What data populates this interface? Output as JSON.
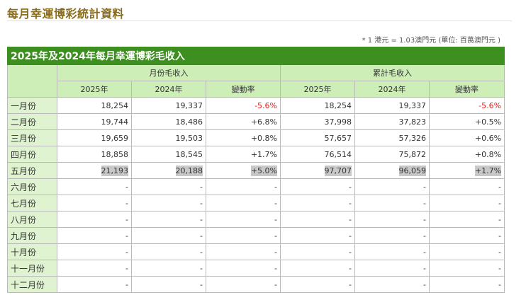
{
  "page_title": "每月幸運博彩統計資料",
  "note": "* 1 港元 = 1.03澳門元  (單位: 百萬澳門元 )",
  "table": {
    "banner": "2025年及2024年每月幸運博彩毛收入",
    "group_monthly": "月份毛收入",
    "group_cumulative": "累計毛收入",
    "col_2025": "2025年",
    "col_2024": "2024年",
    "col_change": "變動率",
    "rows": [
      {
        "month": "一月份",
        "m2025": "18,254",
        "m2024": "19,337",
        "mchg": "-5.6%",
        "c2025": "18,254",
        "c2024": "19,337",
        "cchg": "-5.6%"
      },
      {
        "month": "二月份",
        "m2025": "19,744",
        "m2024": "18,486",
        "mchg": "+6.8%",
        "c2025": "37,998",
        "c2024": "37,823",
        "cchg": "+0.5%"
      },
      {
        "month": "三月份",
        "m2025": "19,659",
        "m2024": "19,503",
        "mchg": "+0.8%",
        "c2025": "57,657",
        "c2024": "57,326",
        "cchg": "+0.6%"
      },
      {
        "month": "四月份",
        "m2025": "18,858",
        "m2024": "18,545",
        "mchg": "+1.7%",
        "c2025": "76,514",
        "c2024": "75,872",
        "cchg": "+0.8%"
      },
      {
        "month": "五月份",
        "m2025": "21,193",
        "m2024": "20,188",
        "mchg": "+5.0%",
        "c2025": "97,707",
        "c2024": "96,059",
        "cchg": "+1.7%"
      },
      {
        "month": "六月份",
        "m2025": "-",
        "m2024": "-",
        "mchg": "-",
        "c2025": "-",
        "c2024": "-",
        "cchg": "-"
      },
      {
        "month": "七月份",
        "m2025": "-",
        "m2024": "-",
        "mchg": "-",
        "c2025": "-",
        "c2024": "-",
        "cchg": "-"
      },
      {
        "month": "八月份",
        "m2025": "-",
        "m2024": "-",
        "mchg": "-",
        "c2025": "-",
        "c2024": "-",
        "cchg": "-"
      },
      {
        "month": "九月份",
        "m2025": "-",
        "m2024": "-",
        "mchg": "-",
        "c2025": "-",
        "c2024": "-",
        "cchg": "-"
      },
      {
        "month": "十月份",
        "m2025": "-",
        "m2024": "-",
        "mchg": "-",
        "c2025": "-",
        "c2024": "-",
        "cchg": "-"
      },
      {
        "month": "十一月份",
        "m2025": "-",
        "m2024": "-",
        "mchg": "-",
        "c2025": "-",
        "c2024": "-",
        "cchg": "-"
      },
      {
        "month": "十二月份",
        "m2025": "-",
        "m2024": "-",
        "mchg": "-",
        "c2025": "-",
        "c2024": "-",
        "cchg": "-"
      }
    ]
  },
  "colors": {
    "banner_bg": "#3d8f1f",
    "header_bg": "#cdeeb7",
    "month_bg": "#e0f3d0",
    "negative": "#e0201b",
    "title": "#8a6d1c",
    "highlight": "#c8c8c8"
  }
}
